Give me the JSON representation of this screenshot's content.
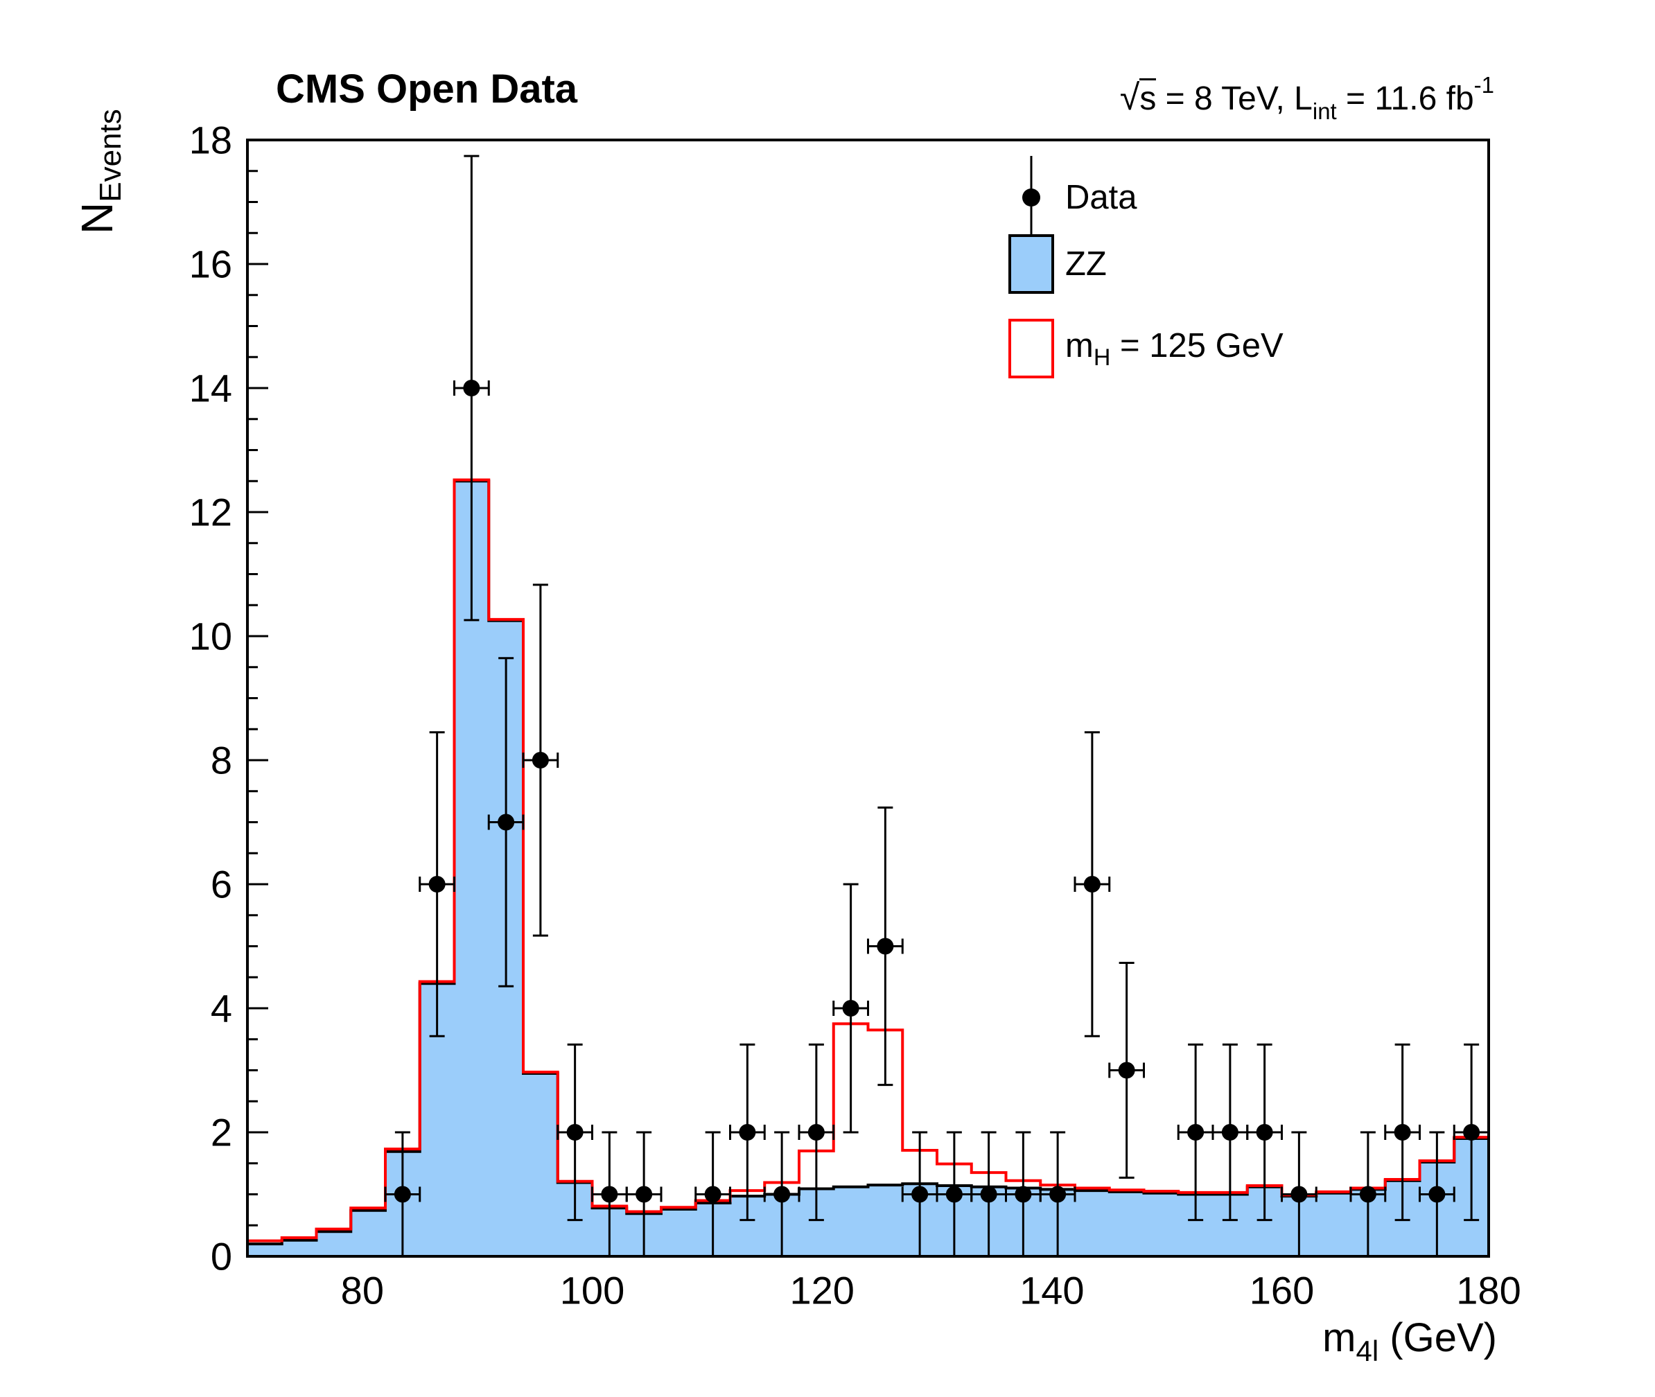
{
  "header": {
    "title": "CMS Open Data",
    "lumi": {
      "sqrt_sym": "√",
      "sqrt_arg": "s",
      "mid": " = 8 TeV, L",
      "sub": "int",
      "mid2": " = 11.6 fb",
      "sup": "-1"
    }
  },
  "axis_titles": {
    "y_main": "N",
    "y_sub": "Events",
    "x_pre": "m",
    "x_sub": "4l",
    "x_post": " (GeV)"
  },
  "legend": {
    "data_label": "Data",
    "zz_label": "ZZ",
    "higgs_pre": "m",
    "higgs_sub": "H",
    "higgs_post": " = 125 GeV"
  },
  "chart_data": {
    "type": "bar",
    "subtype": "histogram-with-data-points",
    "title": "CMS Open Data",
    "top_right_annotation": "sqrt(s) = 8 TeV, L_int = 11.6 fb^-1",
    "xlabel": "m_4l (GeV)",
    "ylabel": "N_Events",
    "xlim": [
      70,
      178
    ],
    "ylim": [
      0,
      18
    ],
    "grid": false,
    "legend_position": "top-right-inside",
    "x_ticks": [
      80,
      100,
      120,
      140,
      160,
      180
    ],
    "y_ticks": [
      0,
      2,
      4,
      6,
      8,
      10,
      12,
      14,
      16,
      18
    ],
    "y_minor_step": 0.5,
    "bin_start": 70,
    "bin_width": 3,
    "n_bins": 36,
    "series": [
      {
        "name": "ZZ",
        "style": "filled_histogram",
        "fill_color": "#9bcdfa",
        "edge_color": "#000000",
        "values": [
          0.2,
          0.26,
          0.4,
          0.74,
          1.69,
          4.4,
          12.5,
          10.25,
          2.95,
          1.19,
          0.78,
          0.69,
          0.76,
          0.86,
          0.97,
          1.0,
          1.09,
          1.12,
          1.15,
          1.17,
          1.14,
          1.12,
          1.1,
          1.08,
          1.06,
          1.04,
          1.02,
          1.0,
          1.0,
          1.12,
          0.97,
          1.02,
          1.08,
          1.22,
          1.52,
          1.9
        ]
      },
      {
        "name": "mH = 125 GeV",
        "style": "line_histogram",
        "line_color": "#ff0000",
        "values": [
          0.25,
          0.3,
          0.44,
          0.78,
          1.73,
          4.43,
          12.52,
          10.27,
          2.97,
          1.21,
          0.81,
          0.72,
          0.79,
          0.9,
          1.06,
          1.19,
          1.7,
          3.75,
          3.65,
          1.71,
          1.49,
          1.35,
          1.22,
          1.15,
          1.1,
          1.07,
          1.05,
          1.03,
          1.03,
          1.14,
          0.99,
          1.04,
          1.1,
          1.24,
          1.54,
          1.92
        ]
      }
    ],
    "data_points": {
      "name": "Data",
      "marker_color": "#000000",
      "error_model": "sqrt(N), lower clipped at 0, x error = half bin width",
      "x": [
        83.5,
        86.5,
        89.5,
        92.5,
        95.5,
        98.5,
        101.5,
        104.5,
        110.5,
        113.5,
        116.5,
        119.5,
        122.5,
        125.5,
        128.5,
        131.5,
        134.5,
        137.5,
        140.5,
        143.5,
        146.5,
        152.5,
        155.5,
        158.5,
        161.5,
        167.5,
        170.5,
        173.5,
        176.5
      ],
      "y": [
        1,
        6,
        14,
        7,
        8,
        2,
        1,
        1,
        1,
        2,
        1,
        2,
        4,
        5,
        1,
        1,
        1,
        1,
        1,
        6,
        3,
        2,
        2,
        2,
        1,
        1,
        2,
        1,
        2
      ]
    }
  }
}
